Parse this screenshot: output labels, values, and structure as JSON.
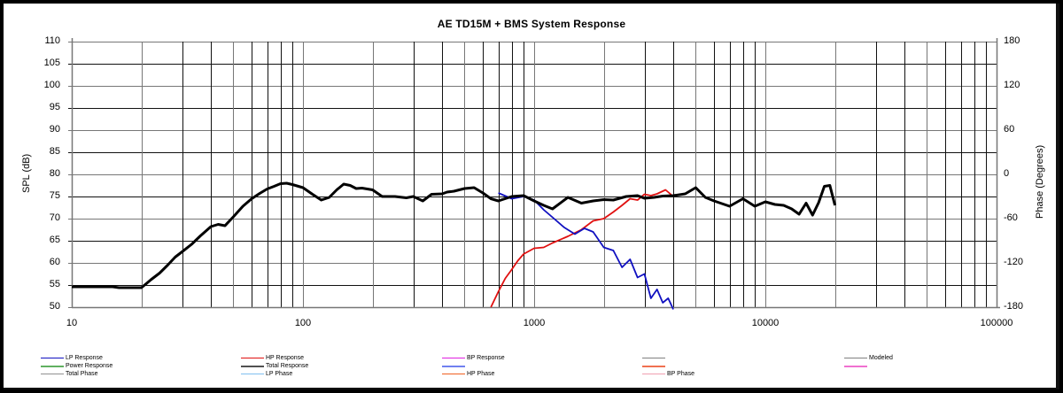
{
  "title": "AE TD15M  + BMS     System Response",
  "y_left_label": "SPL (dB)",
  "y_right_label": "Phase (Degrees)",
  "x_ticks": [
    "10",
    "100",
    "1000",
    "10000",
    "100000"
  ],
  "y_left_ticks": [
    "110",
    "105",
    "100",
    "95",
    "90",
    "85",
    "80",
    "75",
    "70",
    "65",
    "60",
    "55",
    "50"
  ],
  "y_right_ticks": [
    "180",
    "120",
    "60",
    "0",
    "-60",
    "-120",
    "-180"
  ],
  "legend": [
    {
      "label": "LP Response",
      "color": "#1010c0",
      "width": 1.5,
      "col": 0,
      "row": 0
    },
    {
      "label": "HP Response",
      "color": "#e01010",
      "width": 1.5,
      "col": 1,
      "row": 0
    },
    {
      "label": "BP Response",
      "color": "#e020e0",
      "width": 1.5,
      "col": 2,
      "row": 0
    },
    {
      "label": "",
      "color": "#808080",
      "width": 1,
      "col": 3,
      "row": 0
    },
    {
      "label": "Modeled",
      "color": "#808080",
      "width": 1,
      "col": 4,
      "row": 0
    },
    {
      "label": "Power Response",
      "color": "#60b060",
      "width": 2,
      "col": 0,
      "row": 1
    },
    {
      "label": "Total Response",
      "color": "#505050",
      "width": 2,
      "col": 1,
      "row": 1
    },
    {
      "label": "",
      "color": "#7080f0",
      "width": 2,
      "col": 2,
      "row": 1
    },
    {
      "label": "",
      "color": "#f07050",
      "width": 2,
      "col": 3,
      "row": 1
    },
    {
      "label": "",
      "color": "#f070d0",
      "width": 2,
      "col": 4,
      "row": 1
    },
    {
      "label": "Total Phase",
      "color": "#909090",
      "width": 1,
      "col": 0,
      "row": 2
    },
    {
      "label": "LP Phase",
      "color": "#80c0f0",
      "width": 1,
      "col": 1,
      "row": 2
    },
    {
      "label": "HP Phase",
      "color": "#f06020",
      "width": 1,
      "col": 2,
      "row": 2
    },
    {
      "label": "BP Phase",
      "color": "#f0a0b0",
      "width": 1,
      "col": 3,
      "row": 2
    }
  ],
  "chart_data": {
    "type": "line",
    "title": "AE TD15M  + BMS     System Response",
    "xlabel": "",
    "ylabel": "SPL (dB)",
    "y2label": "Phase (Degrees)",
    "xscale": "log",
    "xlim": [
      10,
      100000
    ],
    "ylim": [
      50,
      110
    ],
    "y2lim": [
      -180,
      180
    ],
    "grid": true,
    "legend_position": "bottom",
    "series": [
      {
        "name": "Total Response",
        "color": "#000000",
        "x": [
          10,
          15,
          16,
          20,
          21,
          22,
          24,
          26,
          28,
          30,
          33,
          36,
          40,
          43,
          46,
          50,
          55,
          60,
          65,
          70,
          75,
          80,
          85,
          90,
          100,
          110,
          120,
          130,
          140,
          150,
          160,
          170,
          180,
          200,
          220,
          250,
          280,
          300,
          330,
          360,
          400,
          420,
          450,
          500,
          550,
          600,
          650,
          700,
          800,
          900,
          1000,
          1100,
          1200,
          1400,
          1600,
          1800,
          2000,
          2200,
          2500,
          2800,
          3000,
          3300,
          3600,
          4000,
          4500,
          5000,
          5500,
          6000,
          7000,
          8000,
          9000,
          10000,
          11000,
          12000,
          13000,
          14000,
          15000,
          16000,
          17000,
          18000,
          19000,
          20000
        ],
        "values": [
          54.6,
          54.6,
          54.4,
          54.4,
          55.3,
          56.2,
          57.7,
          59.5,
          61.3,
          62.5,
          64.2,
          66.1,
          68.2,
          68.7,
          68.4,
          70.4,
          72.8,
          74.5,
          75.7,
          76.7,
          77.3,
          77.9,
          78.0,
          77.7,
          77.0,
          75.5,
          74.2,
          74.8,
          76.5,
          77.8,
          77.5,
          76.8,
          76.9,
          76.5,
          75.0,
          75.0,
          74.7,
          75.0,
          74.0,
          75.5,
          75.6,
          76.0,
          76.2,
          76.8,
          77.0,
          75.8,
          74.5,
          74.0,
          75.0,
          75.2,
          74.0,
          73.0,
          72.2,
          74.8,
          73.5,
          74.0,
          74.3,
          74.2,
          75.0,
          75.2,
          74.6,
          74.8,
          75.1,
          75.2,
          75.6,
          77.0,
          74.8,
          74.0,
          72.8,
          74.5,
          72.8,
          73.8,
          73.2,
          73.0,
          72.2,
          71.0,
          73.5,
          70.8,
          73.6,
          77.3,
          77.5,
          73.0
        ]
      },
      {
        "name": "LP Response",
        "color": "#1010c0",
        "x": [
          700,
          800,
          900,
          1000,
          1100,
          1200,
          1350,
          1500,
          1650,
          1800,
          2000,
          2200,
          2400,
          2600,
          2800,
          3000,
          3200,
          3400,
          3600,
          3800,
          4000
        ],
        "values": [
          75.8,
          74.5,
          75.0,
          74.2,
          72.0,
          70.3,
          68.0,
          66.5,
          67.8,
          67.0,
          63.5,
          62.8,
          59.0,
          60.8,
          56.7,
          57.5,
          52.0,
          54.0,
          51.0,
          52.0,
          49.5
        ]
      },
      {
        "name": "HP Response",
        "color": "#e01010",
        "x": [
          650,
          700,
          750,
          800,
          850,
          900,
          1000,
          1100,
          1200,
          1400,
          1600,
          1800,
          2000,
          2200,
          2400,
          2600,
          2800,
          3000,
          3200,
          3400,
          3700,
          4000
        ],
        "values": [
          50,
          53.5,
          56.5,
          58.5,
          60.5,
          62,
          63.3,
          63.5,
          64.5,
          66,
          67.5,
          69.5,
          70,
          71.5,
          73,
          74.5,
          74.2,
          75.5,
          75.2,
          75.6,
          76.5,
          75.0
        ]
      }
    ]
  }
}
